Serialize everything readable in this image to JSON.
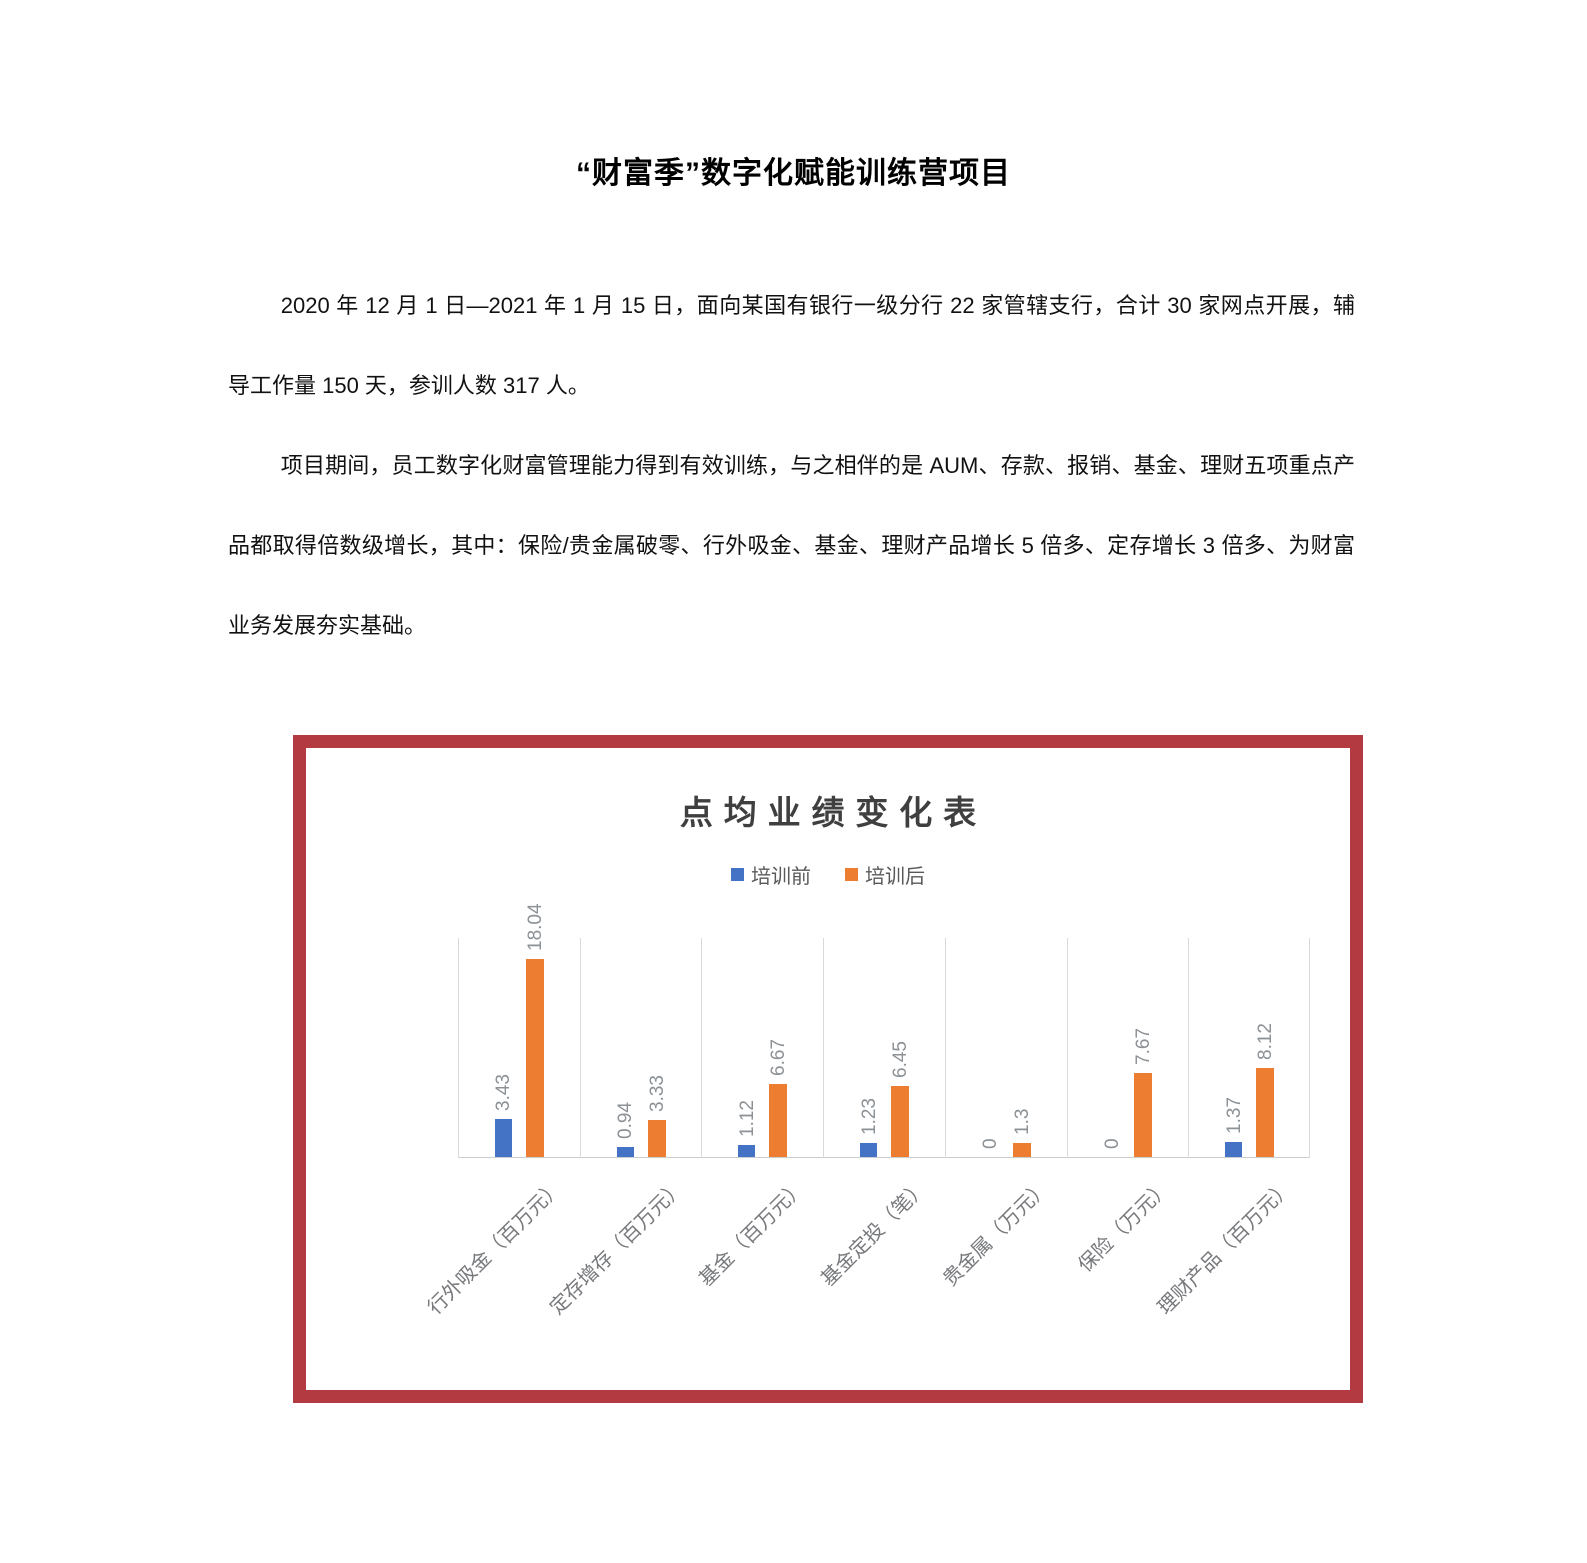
{
  "document": {
    "title": "“财富季”数字化赋能训练营项目",
    "paragraphs": [
      "2020 年 12 月 1 日—2021 年 1 月 15 日，面向某国有银行一级分行 22 家管辖支行，合计 30 家网点开展，辅导工作量 150 天，参训人数 317 人。",
      "项目期间，员工数字化财富管理能力得到有效训练，与之相伴的是 AUM、存款、报销、基金、理财五项重点产品都取得倍数级增长，其中：保险/贵金属破零、行外吸金、基金、理财产品增长 5 倍多、定存增长 3 倍多、为财富业务发展夯实基础。"
    ]
  },
  "chart_frame": {
    "border_color": "#b43a42"
  },
  "chart_data": {
    "type": "bar",
    "title": "点均业绩变化表",
    "categories": [
      "行外吸金（百万元）",
      "定存增存（百万元）",
      "基金（百万元）",
      "基金定投（笔）",
      "贵金属（万元）",
      "保险（万元）",
      "理财产品（百万元）"
    ],
    "series": [
      {
        "name": "培训前",
        "color": "#4472c4",
        "values": [
          3.43,
          0.94,
          1.12,
          1.23,
          0,
          0,
          1.37
        ]
      },
      {
        "name": "培训后",
        "color": "#ed7d31",
        "values": [
          18.04,
          3.33,
          6.67,
          6.45,
          1.3,
          7.67,
          8.12
        ]
      }
    ],
    "ylim": [
      0,
      20
    ],
    "legend_position": "top",
    "grid": "vertical category separators only, no horizontal gridlines, y-axis hidden",
    "value_labels": "rotated 90deg above each bar",
    "category_labels": "rotated 45deg below axis",
    "gridline_color": "#d9d9d9",
    "axis_line_color": "#c9cdd1",
    "value_label_color": "#8c9196",
    "category_label_color": "#77797c",
    "title_color": "#3f3f3f"
  }
}
